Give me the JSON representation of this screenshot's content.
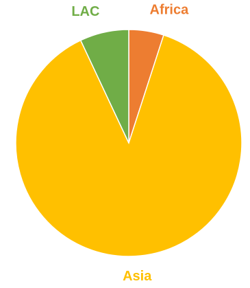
{
  "chart_data": {
    "type": "pie",
    "categories": [
      "Africa",
      "Asia",
      "LAC"
    ],
    "values": [
      5,
      88,
      7
    ],
    "colors": [
      "#ed7d31",
      "#ffc000",
      "#70ad47"
    ]
  }
}
